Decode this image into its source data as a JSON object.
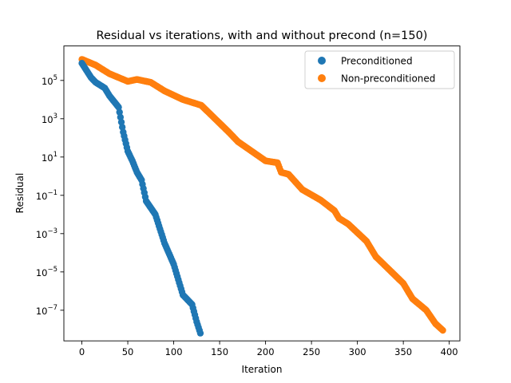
{
  "chart_data": {
    "type": "scatter",
    "title": "Residual vs iterations, with and without precond (n=150)",
    "xlabel": "Iteration",
    "ylabel": "Residual",
    "xlim": [
      -19.6,
      411.6
    ],
    "ylim_log10": [
      -8.6,
      6.8
    ],
    "yscale": "log",
    "grid": false,
    "legend_position": "top-right",
    "x_ticks": [
      0,
      50,
      100,
      150,
      200,
      250,
      300,
      350,
      400
    ],
    "x_tick_labels": [
      "0",
      "50",
      "100",
      "150",
      "200",
      "250",
      "300",
      "350",
      "400"
    ],
    "y_ticks_log10": [
      -7,
      -5,
      -3,
      -1,
      1,
      3,
      5
    ],
    "y_tick_labels": [
      {
        "base": "10",
        "exp": "−7"
      },
      {
        "base": "10",
        "exp": "−5"
      },
      {
        "base": "10",
        "exp": "−3"
      },
      {
        "base": "10",
        "exp": "−1"
      },
      {
        "base": "10",
        "exp": "1"
      },
      {
        "base": "10",
        "exp": "3"
      },
      {
        "base": "10",
        "exp": "5"
      }
    ],
    "series": [
      {
        "name": "Preconditioned",
        "color": "#1f77b4",
        "anchors_log10": [
          [
            0,
            5.9
          ],
          [
            10,
            5.15
          ],
          [
            15,
            4.9
          ],
          [
            25,
            4.6
          ],
          [
            30,
            4.2
          ],
          [
            40,
            3.6
          ],
          [
            45,
            2.3
          ],
          [
            50,
            1.3
          ],
          [
            55,
            0.8
          ],
          [
            60,
            0.2
          ],
          [
            65,
            -0.2
          ],
          [
            70,
            -1.3
          ],
          [
            80,
            -2.0
          ],
          [
            90,
            -3.5
          ],
          [
            100,
            -4.6
          ],
          [
            110,
            -6.2
          ],
          [
            120,
            -6.7
          ],
          [
            125,
            -7.6
          ],
          [
            129,
            -8.2
          ]
        ]
      },
      {
        "name": "Non-preconditioned",
        "color": "#ff7f0e",
        "anchors_log10": [
          [
            0,
            6.1
          ],
          [
            15,
            5.8
          ],
          [
            30,
            5.35
          ],
          [
            50,
            4.95
          ],
          [
            60,
            5.05
          ],
          [
            75,
            4.9
          ],
          [
            90,
            4.45
          ],
          [
            110,
            4.0
          ],
          [
            130,
            3.7
          ],
          [
            145,
            3.0
          ],
          [
            160,
            2.3
          ],
          [
            170,
            1.8
          ],
          [
            185,
            1.3
          ],
          [
            200,
            0.8
          ],
          [
            213,
            0.7
          ],
          [
            217,
            0.2
          ],
          [
            225,
            0.1
          ],
          [
            240,
            -0.7
          ],
          [
            260,
            -1.25
          ],
          [
            275,
            -1.8
          ],
          [
            280,
            -2.2
          ],
          [
            290,
            -2.5
          ],
          [
            310,
            -3.4
          ],
          [
            320,
            -4.2
          ],
          [
            335,
            -4.9
          ],
          [
            350,
            -5.6
          ],
          [
            360,
            -6.4
          ],
          [
            375,
            -7.0
          ],
          [
            385,
            -7.7
          ],
          [
            393,
            -8.05
          ]
        ]
      }
    ]
  }
}
